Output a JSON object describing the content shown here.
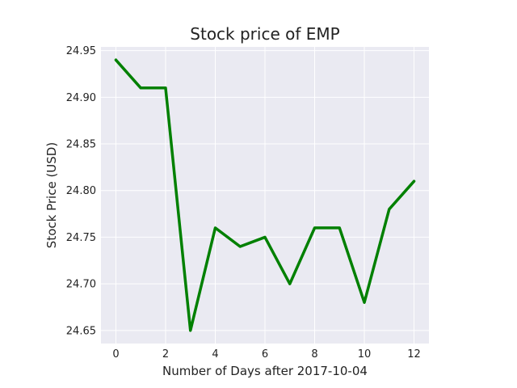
{
  "chart_data": {
    "type": "line",
    "title": "Stock price of EMP",
    "xlabel": "Number of Days after 2017-10-04",
    "ylabel": "Stock Price (USD)",
    "xlim": [
      -0.6,
      12.6
    ],
    "ylim": [
      24.636,
      24.954
    ],
    "xticks": [
      0,
      2,
      4,
      6,
      8,
      10,
      12
    ],
    "xtick_labels": [
      "0",
      "2",
      "4",
      "6",
      "8",
      "10",
      "12"
    ],
    "yticks": [
      24.65,
      24.7,
      24.75,
      24.8,
      24.85,
      24.9,
      24.95
    ],
    "ytick_labels": [
      "24.65",
      "24.70",
      "24.75",
      "24.80",
      "24.85",
      "24.90",
      "24.95"
    ],
    "grid": true,
    "background_color": "#eaeaf2",
    "series": [
      {
        "color": "#008000",
        "x": [
          0,
          1,
          2,
          3,
          4,
          5,
          6,
          7,
          8,
          9,
          10,
          11,
          12
        ],
        "values": [
          24.94,
          24.91,
          24.91,
          24.65,
          24.76,
          24.74,
          24.75,
          24.7,
          24.76,
          24.76,
          24.68,
          24.78,
          24.81
        ]
      }
    ]
  }
}
